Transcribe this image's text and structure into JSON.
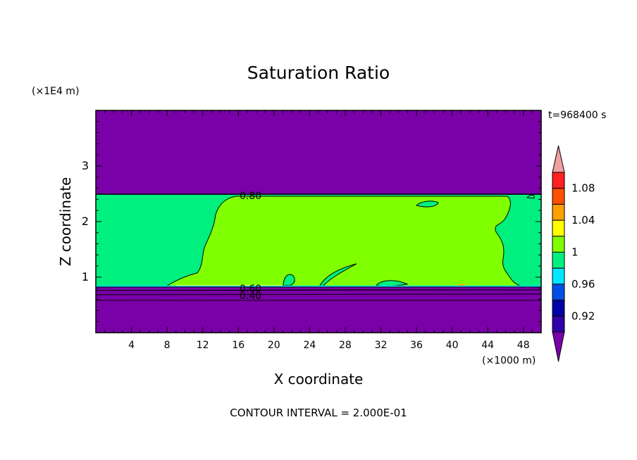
{
  "chart_data": {
    "type": "contour",
    "title": "Saturation Ratio",
    "xlabel": "X coordinate",
    "ylabel": "Z coordinate",
    "x_unit": "(×1000 m)",
    "y_unit": "(×1E4 m)",
    "time_label": "t=968400 s",
    "footer": "CONTOUR INTERVAL = 2.000E-01",
    "xlim": [
      0,
      50
    ],
    "ylim": [
      0,
      4
    ],
    "x_ticks": [
      4,
      8,
      12,
      16,
      20,
      24,
      28,
      32,
      36,
      40,
      44,
      48
    ],
    "y_ticks": [
      1,
      2,
      3
    ],
    "contour_labels": [
      "0.80",
      "0.60",
      "0.40"
    ],
    "colorbar": {
      "levels": [
        0.92,
        0.94,
        0.96,
        0.98,
        1.0,
        1.02,
        1.04,
        1.06,
        1.08,
        1.1
      ],
      "tick_labels": [
        "1.08",
        "1.04",
        "1",
        "0.96",
        "0.92"
      ],
      "colors": [
        "#7a00a8",
        "#3000a8",
        "#0000a8",
        "#0050e8",
        "#00e8ff",
        "#00f080",
        "#80ff00",
        "#ffff00",
        "#ffa000",
        "#ff5000",
        "#ff2020",
        "#f0a0a0"
      ]
    },
    "regions": [
      {
        "name": "upper-dry-layer",
        "z": [
          2.5,
          4.0
        ],
        "level": "<0.92"
      },
      {
        "name": "cloud-layer",
        "z": [
          0.83,
          2.5
        ],
        "level": "1.00-1.02"
      },
      {
        "name": "lower-dry-layer",
        "z": [
          0.0,
          0.83
        ],
        "level": "<0.92"
      }
    ]
  }
}
